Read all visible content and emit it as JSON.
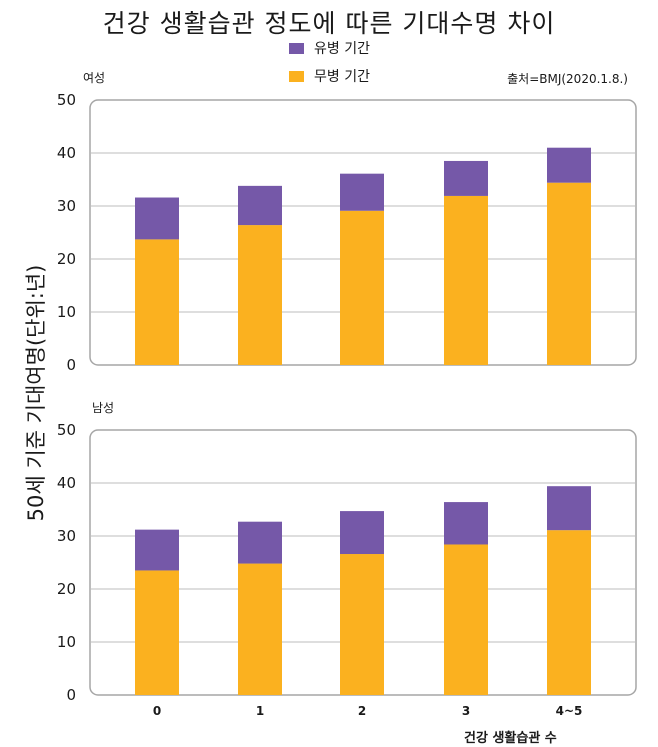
{
  "title": "건강 생활습관 정도에 따른 기대수명 차이",
  "source": "출처=BMJ(2020.1.8.)",
  "colors": {
    "sick": "#7558a8",
    "healthy": "#fbb11f"
  },
  "chart_data": [
    {
      "type": "bar",
      "stacked": true,
      "panel_title": "여성",
      "categories": [
        "0",
        "1",
        "2",
        "3",
        "4~5"
      ],
      "series": [
        {
          "name": "무병 기간",
          "values": [
            23.7,
            26.4,
            29.1,
            31.9,
            34.4
          ]
        },
        {
          "name": "유병 기간",
          "values": [
            7.9,
            7.4,
            7.0,
            6.6,
            6.6
          ]
        }
      ],
      "ylim": [
        0,
        50
      ],
      "yticks": [
        "0",
        "10",
        "20",
        "30",
        "40",
        "50"
      ],
      "grid": true
    },
    {
      "type": "bar",
      "stacked": true,
      "panel_title": "남성",
      "categories": [
        "0",
        "1",
        "2",
        "3",
        "4~5"
      ],
      "series": [
        {
          "name": "무병 기간",
          "values": [
            23.5,
            24.8,
            26.6,
            28.4,
            31.1
          ]
        },
        {
          "name": "유병 기간",
          "values": [
            7.7,
            7.9,
            8.1,
            8.0,
            8.3
          ]
        }
      ],
      "ylim": [
        0,
        50
      ],
      "yticks": [
        "0",
        "10",
        "20",
        "30",
        "40",
        "50"
      ],
      "grid": true
    }
  ],
  "legend": [
    "유병 기간",
    "무병 기간"
  ],
  "ylabel": "50세 기준 기대여명(단위:년)",
  "xlabel": "건강 생활습관 수",
  "xticks": [
    "0",
    "1",
    "2",
    "3",
    "4~5"
  ]
}
